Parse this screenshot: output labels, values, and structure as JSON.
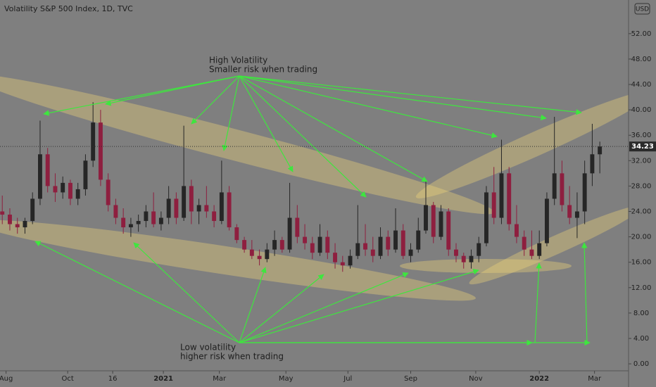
{
  "chart_data": {
    "type": "candlestick",
    "title": "Volatility S&P 500 Index, 1D, TVC",
    "currency": "USD",
    "annotations": [
      "High Volatility",
      "Smaller risk when trading",
      "Low volatility",
      "higher risk when trading"
    ],
    "up_color": "#262626",
    "down_color": "#8e1f3f",
    "open": [
      24,
      23.5,
      22,
      21.5,
      22.5,
      26,
      33,
      28,
      27,
      28.5,
      26,
      27.5,
      32,
      38,
      29,
      25,
      23,
      21.5,
      22,
      22.5,
      24,
      22,
      23,
      26,
      23,
      28,
      24,
      25,
      24,
      22.5,
      27,
      21.5,
      19.5,
      18,
      17,
      16.5,
      18,
      19.5,
      18,
      23,
      20,
      19,
      17.5,
      20,
      17.5,
      16,
      15.5,
      17,
      19,
      18,
      17,
      20,
      18,
      21,
      17,
      18,
      21,
      25,
      20,
      24,
      18,
      17,
      16,
      17,
      19,
      27,
      23,
      30,
      22,
      20,
      18,
      17,
      19,
      26,
      30,
      25,
      23,
      24,
      30,
      33
    ],
    "high": [
      26.5,
      24.5,
      23,
      23,
      27,
      38.3,
      34,
      30,
      29.5,
      29,
      28.5,
      33,
      41.2,
      40,
      30,
      26,
      24.5,
      23,
      23.5,
      25,
      27,
      24,
      28,
      27,
      37.5,
      29,
      26,
      28,
      25,
      32,
      28,
      22,
      20,
      19.5,
      18,
      19,
      21,
      20,
      28.5,
      25,
      22,
      20,
      22,
      21,
      19,
      17,
      18,
      25,
      22,
      20,
      21.5,
      21,
      24.5,
      22,
      19,
      23,
      28.8,
      25.5,
      25,
      24.5,
      19,
      17.5,
      18,
      20,
      28,
      31,
      35.3,
      31,
      25,
      21,
      21,
      21,
      27,
      38.9,
      32,
      28,
      27,
      32,
      37.8,
      35
    ],
    "low": [
      22,
      21,
      20.5,
      20.5,
      22,
      25,
      27,
      25.5,
      26,
      25,
      25,
      26.5,
      31,
      28,
      24,
      22,
      20.5,
      20,
      20.8,
      21.5,
      21.5,
      21,
      22,
      22,
      22.5,
      22,
      22,
      23,
      21.5,
      22,
      21,
      19,
      17.5,
      16.5,
      15.5,
      16,
      17,
      17.5,
      17.5,
      19,
      18,
      16.5,
      17,
      16.5,
      15,
      14.5,
      15,
      16.5,
      17,
      16,
      16.5,
      17,
      17.5,
      16.5,
      16,
      17.5,
      20.5,
      19,
      19.5,
      17,
      16,
      15,
      15,
      16,
      18.5,
      22,
      22,
      21,
      19,
      17,
      16.5,
      16.5,
      18.5,
      25,
      24,
      22,
      19.8,
      22,
      28,
      30
    ],
    "close": [
      23.5,
      22,
      21.5,
      22.5,
      26,
      33,
      28,
      27,
      28.5,
      26,
      27.5,
      32,
      38,
      29,
      25,
      23,
      21.5,
      22,
      22.5,
      24,
      22,
      23,
      26,
      23,
      28,
      24,
      25,
      24,
      22.5,
      27,
      21.5,
      19.5,
      18,
      17,
      16.5,
      18,
      19.5,
      18,
      23,
      20,
      19,
      17.5,
      20,
      17.5,
      16,
      15.5,
      17,
      19,
      18,
      17,
      20,
      18,
      21,
      17,
      18,
      21,
      25,
      20,
      24,
      18,
      17,
      16,
      17,
      19,
      27,
      23,
      30,
      22,
      20,
      18,
      17,
      19,
      26,
      30,
      25,
      23,
      24,
      30,
      33,
      34.23
    ],
    "xlim": [
      -0.3,
      82.8
    ],
    "xticks": [
      {
        "value": 0.5,
        "label": "Aug"
      },
      {
        "value": 8.65,
        "label": "Oct"
      },
      {
        "value": 14.6,
        "label": "16"
      },
      {
        "value": 21.3,
        "label": "2021"
      },
      {
        "value": 28.7,
        "label": "Mar"
      },
      {
        "value": 37.5,
        "label": "May"
      },
      {
        "value": 45.7,
        "label": "Jul"
      },
      {
        "value": 54,
        "label": "Sep"
      },
      {
        "value": 62.6,
        "label": "Nov"
      },
      {
        "value": 71,
        "label": "2022"
      },
      {
        "value": 78.3,
        "label": "Mar"
      }
    ],
    "ylim": [
      -1.1,
      57.3
    ],
    "yticks": [
      {
        "value": 0,
        "label": "0.00"
      },
      {
        "value": 4,
        "label": "4.00"
      },
      {
        "value": 8,
        "label": "8.00"
      },
      {
        "value": 12,
        "label": "12.00"
      },
      {
        "value": 16,
        "label": "16.00"
      },
      {
        "value": 20,
        "label": "20.00"
      },
      {
        "value": 24,
        "label": "24.00"
      },
      {
        "value": 28,
        "label": "28.00"
      },
      {
        "value": 32,
        "label": "32.00"
      },
      {
        "value": 36,
        "label": "36.00"
      },
      {
        "value": 40,
        "label": "40.00"
      },
      {
        "value": 44,
        "label": "44.00"
      },
      {
        "value": 48,
        "label": "48.00"
      },
      {
        "value": 52,
        "label": "52.00"
      }
    ]
  }
}
